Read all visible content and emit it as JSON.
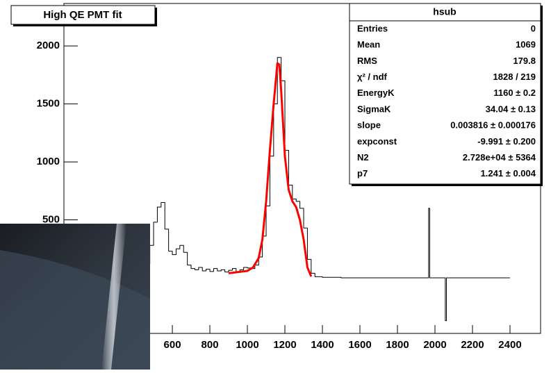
{
  "chart_data": {
    "type": "histogram",
    "title": "High QE PMT fit",
    "xlim": [
      22,
      2563
    ],
    "ylim": [
      -479,
      2366
    ],
    "xticks": [
      600,
      800,
      1000,
      1200,
      1400,
      1600,
      1800,
      2000,
      2200,
      2400
    ],
    "yticks": [
      500,
      1000,
      1500,
      2000
    ],
    "series": [
      {
        "name": "hsub",
        "color": "#000000",
        "x": [
          440,
          460,
          480,
          500,
          520,
          540,
          560,
          580,
          600,
          620,
          640,
          660,
          680,
          700,
          720,
          740,
          760,
          780,
          800,
          820,
          840,
          860,
          880,
          900,
          920,
          940,
          960,
          980,
          1000,
          1020,
          1040,
          1060,
          1080,
          1100,
          1120,
          1140,
          1160,
          1180,
          1200,
          1220,
          1240,
          1260,
          1280,
          1300,
          1320,
          1340,
          1360,
          1400,
          1500,
          1600,
          1700,
          1800,
          1900,
          1960,
          1966,
          1972,
          2000,
          2049,
          2055,
          2061,
          2100,
          2200,
          2300,
          2400
        ],
        "values": [
          40,
          120,
          280,
          480,
          610,
          650,
          420,
          230,
          200,
          250,
          280,
          220,
          110,
          80,
          70,
          90,
          60,
          75,
          55,
          80,
          60,
          70,
          50,
          65,
          80,
          55,
          70,
          90,
          85,
          80,
          110,
          180,
          360,
          620,
          1050,
          1500,
          1900,
          1700,
          1100,
          800,
          680,
          660,
          600,
          430,
          160,
          40,
          10,
          5,
          0,
          0,
          0,
          0,
          0,
          0,
          600,
          0,
          0,
          0,
          -370,
          0,
          0,
          0,
          0,
          0
        ]
      },
      {
        "name": "fit",
        "color": "#ff0000",
        "x": [
          900,
          950,
          1000,
          1030,
          1060,
          1080,
          1100,
          1120,
          1140,
          1160,
          1170,
          1180,
          1200,
          1220,
          1240,
          1260,
          1280,
          1300,
          1320,
          1340
        ],
        "values": [
          40,
          50,
          60,
          90,
          170,
          330,
          660,
          1100,
          1500,
          1850,
          1840,
          1620,
          1050,
          760,
          660,
          610,
          500,
          330,
          90,
          12
        ]
      }
    ],
    "stats": {
      "title": "hsub",
      "rows": [
        [
          "Entries",
          "0"
        ],
        [
          "Mean",
          "1069"
        ],
        [
          "RMS",
          "179.8"
        ],
        [
          "χ² / ndf",
          "1828 / 219"
        ],
        [
          "EnergyK",
          "1160 ± 0.2"
        ],
        [
          "SigmaK",
          "34.04 ± 0.13"
        ],
        [
          "slope",
          "0.003816 ± 0.000176"
        ],
        [
          "expconst",
          "-9.991 ± 0.200"
        ],
        [
          "N2",
          "2.728e+04 ± 5364"
        ],
        [
          "p7",
          "1.241 ± 0.004"
        ]
      ]
    }
  }
}
